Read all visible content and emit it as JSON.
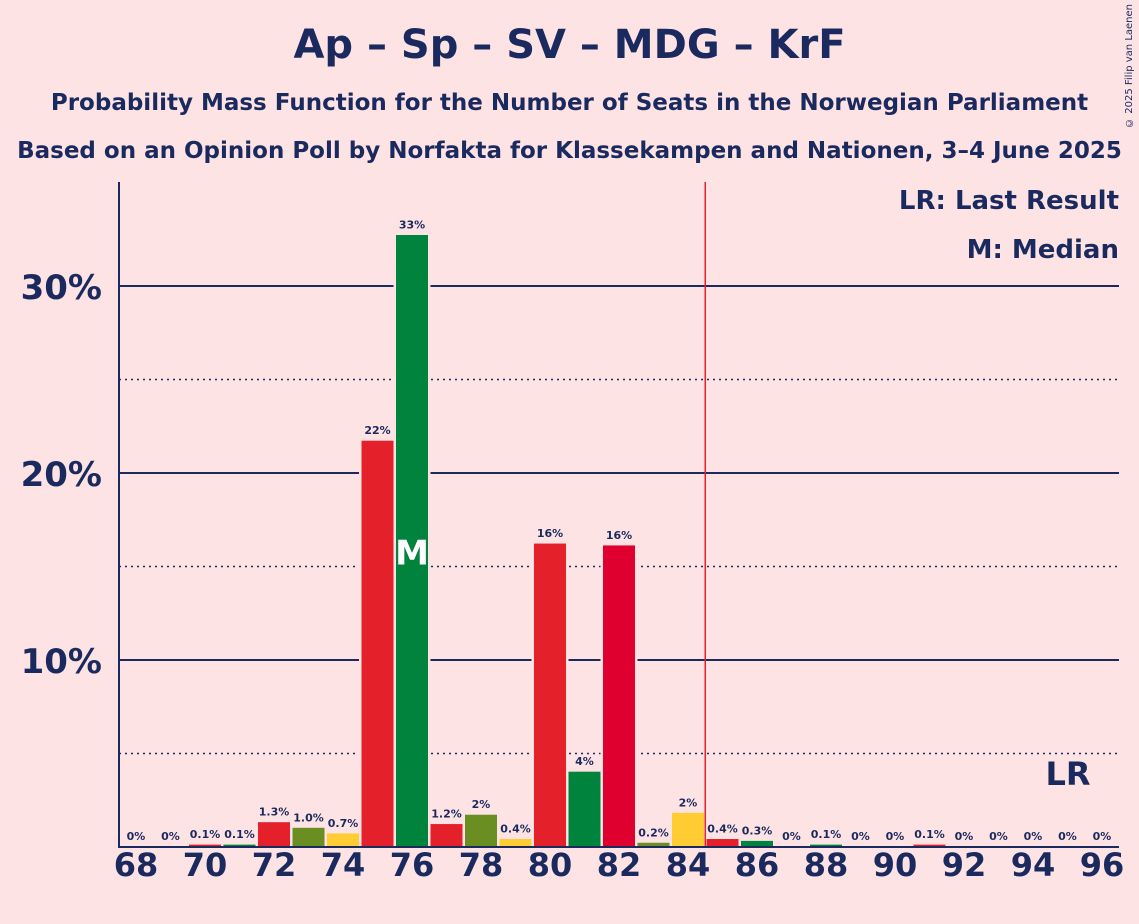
{
  "title": "Ap – Sp – SV – MDG – KrF",
  "subtitle_1": "Probability Mass Function for the Number of Seats in the Norwegian Parliament",
  "subtitle_2": "Based on an Opinion Poll by Norfakta for Klassekampen and Nationen, 3–4 June 2025",
  "legend": {
    "last_result": "LR: Last Result",
    "median": "M: Median"
  },
  "copyright": "© 2025 Filip van Laenen",
  "chart_data": {
    "type": "bar",
    "ylim": [
      0,
      35.5
    ],
    "y_ticks": [
      {
        "value": 10,
        "label": "10%"
      },
      {
        "value": 20,
        "label": "20%"
      },
      {
        "value": 30,
        "label": "30%"
      }
    ],
    "y_minor_ticks": [
      5,
      15,
      25
    ],
    "x_tick_labels": [
      "68",
      "70",
      "72",
      "74",
      "76",
      "78",
      "80",
      "82",
      "84",
      "86",
      "88",
      "90",
      "92",
      "94",
      "96"
    ],
    "last_result_seat": 84.5,
    "last_result_label": "LR",
    "median_seat": 76,
    "median_label": "M",
    "bars": [
      {
        "x": 68,
        "value": 0,
        "label": "0%",
        "color": "#E4202B"
      },
      {
        "x": 69,
        "value": 0,
        "label": "0%",
        "color": "#00843D"
      },
      {
        "x": 70,
        "value": 0.1,
        "label": "0.1%",
        "color": "#E4202B"
      },
      {
        "x": 71,
        "value": 0.1,
        "label": "0.1%",
        "color": "#00843D"
      },
      {
        "x": 72,
        "value": 1.3,
        "label": "1.3%",
        "color": "#E4202B"
      },
      {
        "x": 73,
        "value": 1.0,
        "label": "1.0%",
        "color": "#6B8E23"
      },
      {
        "x": 74,
        "value": 0.7,
        "label": "0.7%",
        "color": "#FFCC33"
      },
      {
        "x": 75,
        "value": 21.7,
        "label": "22%",
        "color": "#E4202B"
      },
      {
        "x": 76,
        "value": 32.7,
        "label": "33%",
        "color": "#00843D"
      },
      {
        "x": 77,
        "value": 1.2,
        "label": "1.2%",
        "color": "#E4202B"
      },
      {
        "x": 78,
        "value": 1.7,
        "label": "2%",
        "color": "#6B8E23"
      },
      {
        "x": 79,
        "value": 0.4,
        "label": "0.4%",
        "color": "#FFCC33"
      },
      {
        "x": 80,
        "value": 16.2,
        "label": "16%",
        "color": "#E4202B"
      },
      {
        "x": 81,
        "value": 4.0,
        "label": "4%",
        "color": "#00843D"
      },
      {
        "x": 82,
        "value": 16.1,
        "label": "16%",
        "color": "#E0002F"
      },
      {
        "x": 83,
        "value": 0.2,
        "label": "0.2%",
        "color": "#6B8E23"
      },
      {
        "x": 84,
        "value": 1.8,
        "label": "2%",
        "color": "#FFCC33"
      },
      {
        "x": 85,
        "value": 0.4,
        "label": "0.4%",
        "color": "#E4202B"
      },
      {
        "x": 86,
        "value": 0.3,
        "label": "0.3%",
        "color": "#00843D"
      },
      {
        "x": 87,
        "value": 0,
        "label": "0%",
        "color": "#E4202B"
      },
      {
        "x": 88,
        "value": 0.1,
        "label": "0.1%",
        "color": "#00843D"
      },
      {
        "x": 89,
        "value": 0,
        "label": "0%",
        "color": "#E4202B"
      },
      {
        "x": 90,
        "value": 0,
        "label": "0%",
        "color": "#00843D"
      },
      {
        "x": 91,
        "value": 0.1,
        "label": "0.1%",
        "color": "#E4202B"
      },
      {
        "x": 92,
        "value": 0,
        "label": "0%",
        "color": "#00843D"
      },
      {
        "x": 93,
        "value": 0,
        "label": "0%",
        "color": "#E4202B"
      },
      {
        "x": 94,
        "value": 0,
        "label": "0%",
        "color": "#00843D"
      },
      {
        "x": 95,
        "value": 0,
        "label": "0%",
        "color": "#E4202B"
      },
      {
        "x": 96,
        "value": 0,
        "label": "0%",
        "color": "#00843D"
      }
    ],
    "colors": {
      "axis": "#1B2A5E",
      "last_result_line": "#E4202B",
      "background": "#FDE3E4"
    }
  }
}
